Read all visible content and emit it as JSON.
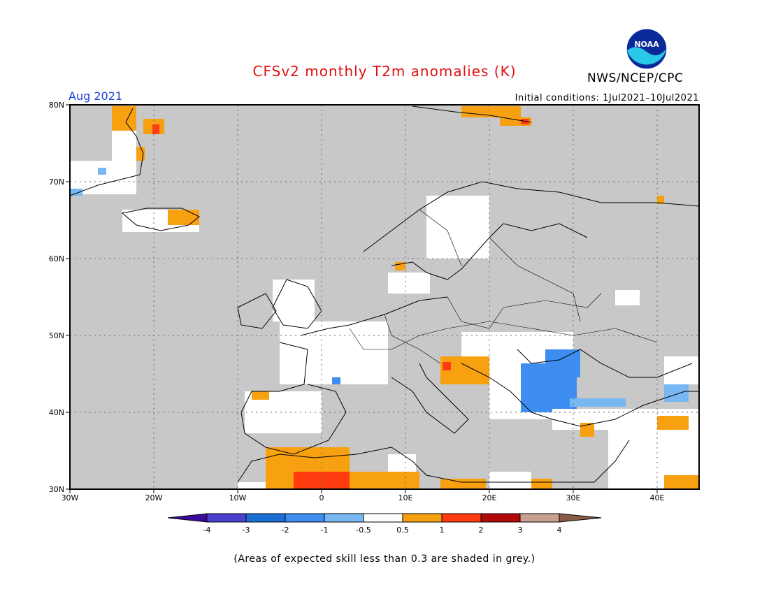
{
  "title": "CFSv2 monthly T2m anomalies (K)",
  "agency": "NWS/NCEP/CPC",
  "logo_text": "NOAA",
  "period": "Aug 2021",
  "initial_conditions": "Initial conditions: 1Jul2021–10Jul2021",
  "footnote": "(Areas of expected skill less than 0.3 are shaded in grey.)",
  "map": {
    "lon_range": [
      -30,
      45
    ],
    "lat_range": [
      30,
      80
    ],
    "lon_labels": [
      "30W",
      "20W",
      "10W",
      "0",
      "10E",
      "20E",
      "30E",
      "40E"
    ],
    "lat_labels": [
      "30N",
      "40N",
      "50N",
      "60N",
      "70N",
      "80N"
    ],
    "low_skill_color": "#c8c8c8"
  },
  "legend": {
    "tick_labels": [
      "-4",
      "-3",
      "-2",
      "-1",
      "-0.5",
      "0.5",
      "1",
      "2",
      "3",
      "4"
    ],
    "colors": [
      "#3a0a9e",
      "#4b3fd0",
      "#1a6fd6",
      "#3d8ef0",
      "#78b8f2",
      "#ffffff",
      "#f7a010",
      "#ff3c10",
      "#b00a0a",
      "#c8a090",
      "#8b5a48"
    ]
  }
}
